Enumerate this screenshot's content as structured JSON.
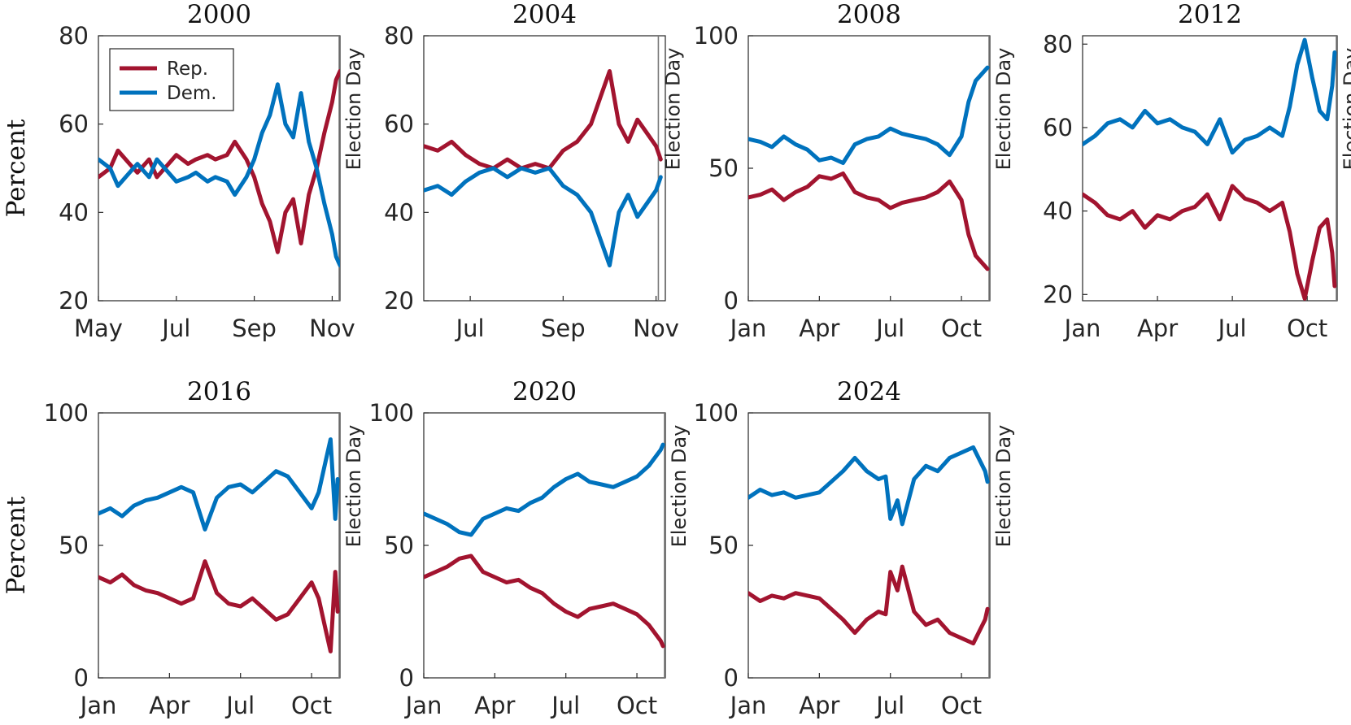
{
  "colors": {
    "rep": "#A2142F",
    "dem": "#0072BD"
  },
  "legend": {
    "rep_label": "Rep.",
    "dem_label": "Dem.",
    "placement": "top-left of 2000 panel"
  },
  "y_axis_title": "Percent",
  "event_label": "Election Day",
  "chart_data": [
    {
      "type": "line",
      "title": "2000",
      "ylabel": "Percent",
      "xlim": [
        0,
        6.2
      ],
      "ylim": [
        20,
        80
      ],
      "yticks": [
        20,
        40,
        60,
        80
      ],
      "xticks": [
        {
          "pos": 0,
          "label": "May"
        },
        {
          "pos": 2,
          "label": "Jul"
        },
        {
          "pos": 4,
          "label": "Sep"
        },
        {
          "pos": 6,
          "label": "Nov"
        }
      ],
      "event_x": 6.25,
      "series": [
        {
          "name": "Rep.",
          "x": [
            0,
            0.3,
            0.5,
            0.8,
            1.0,
            1.3,
            1.5,
            1.8,
            2.0,
            2.3,
            2.5,
            2.8,
            3.0,
            3.3,
            3.5,
            3.8,
            4.0,
            4.2,
            4.4,
            4.6,
            4.8,
            5.0,
            5.2,
            5.4,
            5.6,
            5.8,
            6.0,
            6.1,
            6.2
          ],
          "y": [
            48,
            50,
            54,
            51,
            49,
            52,
            48,
            51,
            53,
            51,
            52,
            53,
            52,
            53,
            56,
            52,
            48,
            42,
            38,
            31,
            40,
            43,
            33,
            44,
            50,
            58,
            65,
            70,
            72
          ]
        },
        {
          "name": "Dem.",
          "x": [
            0,
            0.3,
            0.5,
            0.8,
            1.0,
            1.3,
            1.5,
            1.8,
            2.0,
            2.3,
            2.5,
            2.8,
            3.0,
            3.3,
            3.5,
            3.8,
            4.0,
            4.2,
            4.4,
            4.6,
            4.8,
            5.0,
            5.2,
            5.4,
            5.6,
            5.8,
            6.0,
            6.1,
            6.2
          ],
          "y": [
            52,
            50,
            46,
            49,
            51,
            48,
            52,
            49,
            47,
            48,
            49,
            47,
            48,
            47,
            44,
            48,
            52,
            58,
            62,
            69,
            60,
            57,
            67,
            56,
            50,
            42,
            35,
            30,
            28
          ]
        }
      ]
    },
    {
      "type": "line",
      "title": "2004",
      "ylabel": "",
      "xlim": [
        0,
        5.2
      ],
      "ylim": [
        20,
        80
      ],
      "yticks": [
        20,
        40,
        60,
        80
      ],
      "xticks": [
        {
          "pos": 1,
          "label": "Jul"
        },
        {
          "pos": 3,
          "label": "Sep"
        },
        {
          "pos": 5,
          "label": "Nov"
        }
      ],
      "event_x": 5.05,
      "series": [
        {
          "name": "Rep.",
          "x": [
            0,
            0.3,
            0.6,
            0.9,
            1.2,
            1.5,
            1.8,
            2.1,
            2.4,
            2.7,
            3.0,
            3.3,
            3.6,
            3.8,
            4.0,
            4.2,
            4.4,
            4.6,
            4.8,
            5.0,
            5.1
          ],
          "y": [
            55,
            54,
            56,
            53,
            51,
            50,
            52,
            50,
            51,
            50,
            54,
            56,
            60,
            66,
            72,
            60,
            56,
            61,
            58,
            55,
            52
          ]
        },
        {
          "name": "Dem.",
          "x": [
            0,
            0.3,
            0.6,
            0.9,
            1.2,
            1.5,
            1.8,
            2.1,
            2.4,
            2.7,
            3.0,
            3.3,
            3.6,
            3.8,
            4.0,
            4.2,
            4.4,
            4.6,
            4.8,
            5.0,
            5.1
          ],
          "y": [
            45,
            46,
            44,
            47,
            49,
            50,
            48,
            50,
            49,
            50,
            46,
            44,
            40,
            34,
            28,
            40,
            44,
            39,
            42,
            45,
            48
          ]
        }
      ]
    },
    {
      "type": "line",
      "title": "2008",
      "ylabel": "",
      "xlim": [
        0,
        10.2
      ],
      "ylim": [
        0,
        100
      ],
      "yticks": [
        0,
        50,
        100
      ],
      "xticks": [
        {
          "pos": 0,
          "label": "Jan"
        },
        {
          "pos": 3,
          "label": "Apr"
        },
        {
          "pos": 6,
          "label": "Jul"
        },
        {
          "pos": 9,
          "label": "Oct"
        }
      ],
      "event_x": 10.2,
      "series": [
        {
          "name": "Rep.",
          "x": [
            0,
            0.5,
            1.0,
            1.5,
            2.0,
            2.5,
            3.0,
            3.5,
            4.0,
            4.5,
            5.0,
            5.5,
            6.0,
            6.5,
            7.0,
            7.5,
            8.0,
            8.5,
            9.0,
            9.3,
            9.6,
            9.9,
            10.1
          ],
          "y": [
            39,
            40,
            42,
            38,
            41,
            43,
            47,
            46,
            48,
            41,
            39,
            38,
            35,
            37,
            38,
            39,
            41,
            45,
            38,
            25,
            17,
            14,
            12
          ]
        },
        {
          "name": "Dem.",
          "x": [
            0,
            0.5,
            1.0,
            1.5,
            2.0,
            2.5,
            3.0,
            3.5,
            4.0,
            4.5,
            5.0,
            5.5,
            6.0,
            6.5,
            7.0,
            7.5,
            8.0,
            8.5,
            9.0,
            9.3,
            9.6,
            9.9,
            10.1
          ],
          "y": [
            61,
            60,
            58,
            62,
            59,
            57,
            53,
            54,
            52,
            59,
            61,
            62,
            65,
            63,
            62,
            61,
            59,
            55,
            62,
            75,
            83,
            86,
            88
          ]
        }
      ]
    },
    {
      "type": "line",
      "title": "2012",
      "ylabel": "",
      "xlim": [
        0,
        10.2
      ],
      "ylim": [
        18.5,
        82
      ],
      "yticks": [
        20,
        40,
        60,
        80
      ],
      "xticks": [
        {
          "pos": 0,
          "label": "Jan"
        },
        {
          "pos": 3,
          "label": "Apr"
        },
        {
          "pos": 6,
          "label": "Jul"
        },
        {
          "pos": 9,
          "label": "Oct"
        }
      ],
      "event_x": 10.2,
      "series": [
        {
          "name": "Rep.",
          "x": [
            0,
            0.5,
            1.0,
            1.5,
            2.0,
            2.5,
            3.0,
            3.5,
            4.0,
            4.5,
            5.0,
            5.5,
            6.0,
            6.5,
            7.0,
            7.5,
            8.0,
            8.3,
            8.6,
            8.9,
            9.2,
            9.5,
            9.8,
            10.0,
            10.1
          ],
          "y": [
            44,
            42,
            39,
            38,
            40,
            36,
            39,
            38,
            40,
            41,
            44,
            38,
            46,
            43,
            42,
            40,
            42,
            35,
            25,
            19,
            28,
            36,
            38,
            30,
            22
          ]
        },
        {
          "name": "Dem.",
          "x": [
            0,
            0.5,
            1.0,
            1.5,
            2.0,
            2.5,
            3.0,
            3.5,
            4.0,
            4.5,
            5.0,
            5.5,
            6.0,
            6.5,
            7.0,
            7.5,
            8.0,
            8.3,
            8.6,
            8.9,
            9.2,
            9.5,
            9.8,
            10.0,
            10.1
          ],
          "y": [
            56,
            58,
            61,
            62,
            60,
            64,
            61,
            62,
            60,
            59,
            56,
            62,
            54,
            57,
            58,
            60,
            58,
            65,
            75,
            81,
            72,
            64,
            62,
            70,
            78
          ]
        }
      ]
    },
    {
      "type": "line",
      "title": "2016",
      "ylabel": "Percent",
      "xlim": [
        0,
        10.2
      ],
      "ylim": [
        0,
        100
      ],
      "yticks": [
        0,
        50,
        100
      ],
      "xticks": [
        {
          "pos": 0,
          "label": "Jan"
        },
        {
          "pos": 3,
          "label": "Apr"
        },
        {
          "pos": 6,
          "label": "Jul"
        },
        {
          "pos": 9,
          "label": "Oct"
        }
      ],
      "event_x": 10.2,
      "series": [
        {
          "name": "Rep.",
          "x": [
            0,
            0.5,
            1.0,
            1.5,
            2.0,
            2.5,
            3.0,
            3.5,
            4.0,
            4.5,
            5.0,
            5.5,
            6.0,
            6.5,
            7.0,
            7.5,
            8.0,
            8.5,
            9.0,
            9.3,
            9.6,
            9.8,
            10.0,
            10.1
          ],
          "y": [
            38,
            36,
            39,
            35,
            33,
            32,
            30,
            28,
            30,
            44,
            32,
            28,
            27,
            30,
            26,
            22,
            24,
            30,
            36,
            30,
            18,
            10,
            40,
            25
          ]
        },
        {
          "name": "Dem.",
          "x": [
            0,
            0.5,
            1.0,
            1.5,
            2.0,
            2.5,
            3.0,
            3.5,
            4.0,
            4.5,
            5.0,
            5.5,
            6.0,
            6.5,
            7.0,
            7.5,
            8.0,
            8.5,
            9.0,
            9.3,
            9.6,
            9.8,
            10.0,
            10.1
          ],
          "y": [
            62,
            64,
            61,
            65,
            67,
            68,
            70,
            72,
            70,
            56,
            68,
            72,
            73,
            70,
            74,
            78,
            76,
            70,
            64,
            70,
            82,
            90,
            60,
            75
          ]
        }
      ]
    },
    {
      "type": "line",
      "title": "2020",
      "ylabel": "",
      "xlim": [
        0,
        10.2
      ],
      "ylim": [
        0,
        100
      ],
      "yticks": [
        0,
        50,
        100
      ],
      "xticks": [
        {
          "pos": 0,
          "label": "Jan"
        },
        {
          "pos": 3,
          "label": "Apr"
        },
        {
          "pos": 6,
          "label": "Jul"
        },
        {
          "pos": 9,
          "label": "Oct"
        }
      ],
      "event_x": 10.2,
      "series": [
        {
          "name": "Rep.",
          "x": [
            0,
            0.5,
            1.0,
            1.5,
            2.0,
            2.5,
            3.0,
            3.5,
            4.0,
            4.5,
            5.0,
            5.5,
            6.0,
            6.5,
            7.0,
            7.5,
            8.0,
            8.5,
            9.0,
            9.5,
            10.0,
            10.1
          ],
          "y": [
            38,
            40,
            42,
            45,
            46,
            40,
            38,
            36,
            37,
            34,
            32,
            28,
            25,
            23,
            26,
            27,
            28,
            26,
            24,
            20,
            14,
            12
          ]
        },
        {
          "name": "Dem.",
          "x": [
            0,
            0.5,
            1.0,
            1.5,
            2.0,
            2.5,
            3.0,
            3.5,
            4.0,
            4.5,
            5.0,
            5.5,
            6.0,
            6.5,
            7.0,
            7.5,
            8.0,
            8.5,
            9.0,
            9.5,
            10.0,
            10.1
          ],
          "y": [
            62,
            60,
            58,
            55,
            54,
            60,
            62,
            64,
            63,
            66,
            68,
            72,
            75,
            77,
            74,
            73,
            72,
            74,
            76,
            80,
            86,
            88
          ]
        }
      ]
    },
    {
      "type": "line",
      "title": "2024",
      "ylabel": "",
      "xlim": [
        0,
        10.2
      ],
      "ylim": [
        0,
        100
      ],
      "yticks": [
        0,
        50,
        100
      ],
      "xticks": [
        {
          "pos": 0,
          "label": "Jan"
        },
        {
          "pos": 3,
          "label": "Apr"
        },
        {
          "pos": 6,
          "label": "Jul"
        },
        {
          "pos": 9,
          "label": "Oct"
        }
      ],
      "event_x": 10.2,
      "series": [
        {
          "name": "Rep.",
          "x": [
            0,
            0.5,
            1.0,
            1.5,
            2.0,
            2.5,
            3.0,
            3.5,
            4.0,
            4.5,
            5.0,
            5.5,
            5.8,
            6.0,
            6.3,
            6.5,
            7.0,
            7.5,
            8.0,
            8.5,
            9.0,
            9.5,
            10.0,
            10.1
          ],
          "y": [
            32,
            29,
            31,
            30,
            32,
            31,
            30,
            26,
            22,
            17,
            22,
            25,
            24,
            40,
            33,
            42,
            25,
            20,
            22,
            17,
            15,
            13,
            22,
            26
          ]
        },
        {
          "name": "Dem.",
          "x": [
            0,
            0.5,
            1.0,
            1.5,
            2.0,
            2.5,
            3.0,
            3.5,
            4.0,
            4.5,
            5.0,
            5.5,
            5.8,
            6.0,
            6.3,
            6.5,
            7.0,
            7.5,
            8.0,
            8.5,
            9.0,
            9.5,
            10.0,
            10.1
          ],
          "y": [
            68,
            71,
            69,
            70,
            68,
            69,
            70,
            74,
            78,
            83,
            78,
            75,
            76,
            60,
            67,
            58,
            75,
            80,
            78,
            83,
            85,
            87,
            78,
            74
          ]
        }
      ]
    }
  ]
}
